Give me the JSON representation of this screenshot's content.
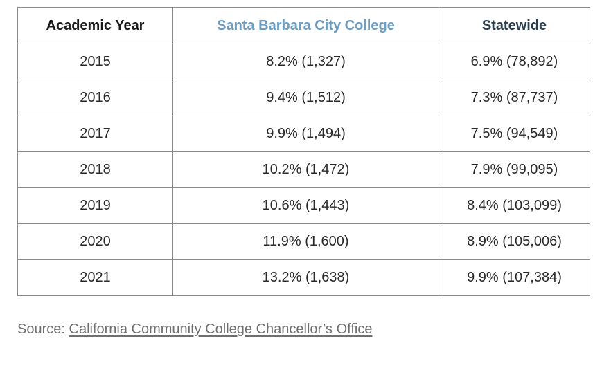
{
  "chart_data": {
    "type": "table",
    "columns": [
      "Academic Year",
      "Santa Barbara City College",
      "Statewide"
    ],
    "rows": [
      [
        "2015",
        "8.2% (1,327)",
        "6.9% (78,892)"
      ],
      [
        "2016",
        "9.4% (1,512)",
        "7.3% (87,737)"
      ],
      [
        "2017",
        "9.9% (1,494)",
        "7.5% (94,549)"
      ],
      [
        "2018",
        "10.2% (1,472)",
        "7.9% (99,095)"
      ],
      [
        "2019",
        "10.6% (1,443)",
        "8.4% (103,099)"
      ],
      [
        "2020",
        "11.9% (1,600)",
        "8.9% (105,006)"
      ],
      [
        "2021",
        "13.2% (1,638)",
        "9.9% (107,384)"
      ]
    ]
  },
  "source": {
    "label": "Source:",
    "link_text": "California Community College Chancellor’s Office"
  },
  "colors": {
    "college_header": "#6a9cc4",
    "statewide_header": "#2a3e52",
    "border": "#8a8a8a"
  }
}
